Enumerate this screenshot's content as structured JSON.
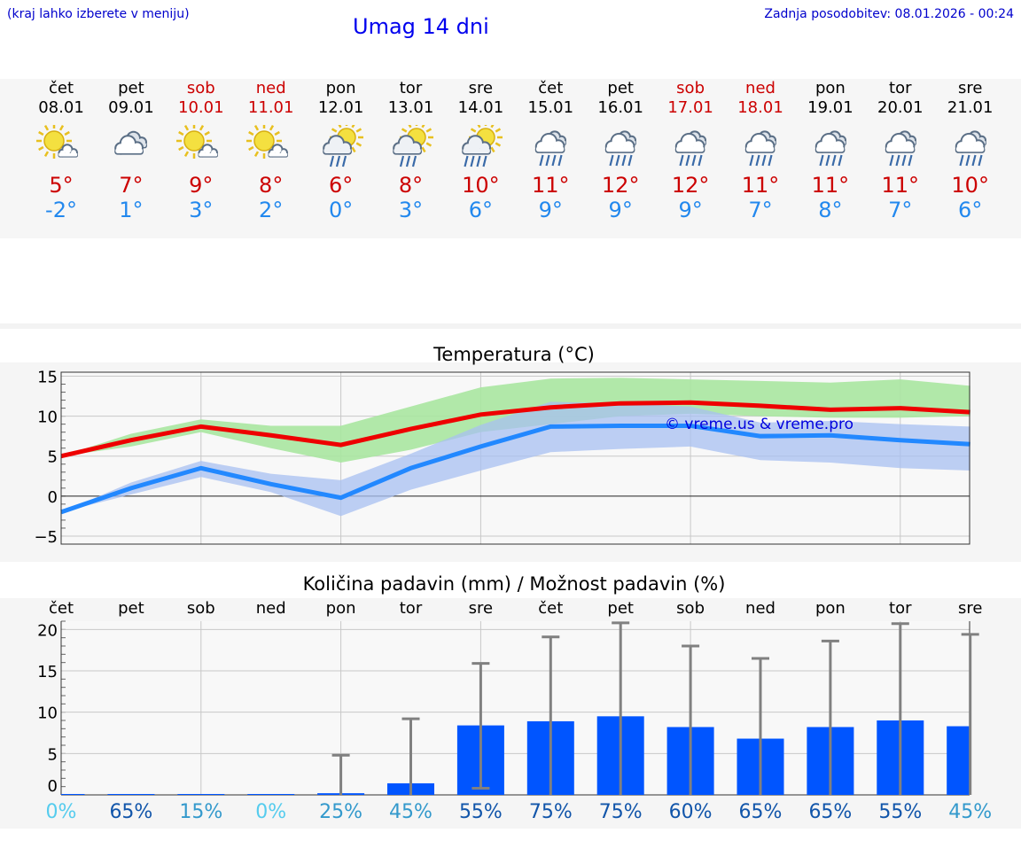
{
  "header": {
    "note": "(kraj lahko izberete v meniju)",
    "title": "Umag 14 dni",
    "updated": "Zadnja posodobitev: 08.01.2026 - 00:24"
  },
  "days": [
    {
      "name": "čet",
      "date": "08.01",
      "weekend": false,
      "icon": "sun-cloud-icon",
      "tmax": "5°",
      "tmin": "-2°"
    },
    {
      "name": "pet",
      "date": "09.01",
      "weekend": false,
      "icon": "cloudy-icon",
      "tmax": "7°",
      "tmin": "1°"
    },
    {
      "name": "sob",
      "date": "10.01",
      "weekend": true,
      "icon": "sun-cloud-icon",
      "tmax": "9°",
      "tmin": "3°"
    },
    {
      "name": "ned",
      "date": "11.01",
      "weekend": true,
      "icon": "sun-cloud-icon",
      "tmax": "8°",
      "tmin": "2°"
    },
    {
      "name": "pon",
      "date": "12.01",
      "weekend": false,
      "icon": "sun-cloud-rain-icon",
      "tmax": "6°",
      "tmin": "0°"
    },
    {
      "name": "tor",
      "date": "13.01",
      "weekend": false,
      "icon": "sun-cloud-rain-icon",
      "tmax": "8°",
      "tmin": "3°"
    },
    {
      "name": "sre",
      "date": "14.01",
      "weekend": false,
      "icon": "sun-cloud-heavy-rain-icon",
      "tmax": "10°",
      "tmin": "6°"
    },
    {
      "name": "čet",
      "date": "15.01",
      "weekend": false,
      "icon": "cloud-rain-icon",
      "tmax": "11°",
      "tmin": "9°"
    },
    {
      "name": "pet",
      "date": "16.01",
      "weekend": false,
      "icon": "cloud-rain-icon",
      "tmax": "12°",
      "tmin": "9°"
    },
    {
      "name": "sob",
      "date": "17.01",
      "weekend": true,
      "icon": "cloud-rain-icon",
      "tmax": "12°",
      "tmin": "9°"
    },
    {
      "name": "ned",
      "date": "18.01",
      "weekend": true,
      "icon": "cloud-rain-icon",
      "tmax": "11°",
      "tmin": "7°"
    },
    {
      "name": "pon",
      "date": "19.01",
      "weekend": false,
      "icon": "cloud-rain-icon",
      "tmax": "11°",
      "tmin": "8°"
    },
    {
      "name": "tor",
      "date": "20.01",
      "weekend": false,
      "icon": "cloud-rain-icon",
      "tmax": "11°",
      "tmin": "7°"
    },
    {
      "name": "sre",
      "date": "21.01",
      "weekend": false,
      "icon": "cloud-rain-icon",
      "tmax": "10°",
      "tmin": "6°"
    }
  ],
  "colors": {
    "max_line": "#ee0000",
    "min_line": "#2288ff",
    "max_band": "#a8e6a0",
    "min_band": "#a8c0f2",
    "overlap_band": "#80c8b0",
    "bar": "#0055ff",
    "weekend_text": "#cc0000",
    "title_blue": "#0000ee"
  },
  "chart_data": [
    {
      "type": "line",
      "title": "Temperatura (°C)",
      "watermark": "© vreme.us & vreme.pro",
      "ylim": [
        -6,
        15.5
      ],
      "yticks": [
        "15",
        "10",
        "5",
        "0",
        "−5"
      ],
      "ytick_values": [
        15,
        10,
        5,
        0,
        -5
      ],
      "x": [
        0,
        1,
        2,
        3,
        4,
        5,
        6,
        7,
        8,
        9,
        10,
        11,
        12,
        13
      ],
      "series": [
        {
          "name": "max",
          "values": [
            5,
            7,
            8.7,
            7.6,
            6.4,
            8.4,
            10.2,
            11.1,
            11.6,
            11.7,
            11.3,
            10.8,
            11.0,
            10.5
          ]
        },
        {
          "name": "min",
          "values": [
            -2,
            1,
            3.5,
            1.5,
            -0.2,
            3.5,
            6.2,
            8.7,
            8.8,
            8.8,
            7.5,
            7.6,
            7.0,
            6.5
          ]
        }
      ],
      "bands": [
        {
          "name": "max_range",
          "low": [
            5,
            6.2,
            8.0,
            6.0,
            4.2,
            5.8,
            8.0,
            9.0,
            10.0,
            10.3,
            10.0,
            9.8,
            9.8,
            10.0
          ],
          "high": [
            5,
            7.8,
            9.6,
            8.8,
            8.8,
            11.2,
            13.6,
            14.7,
            14.8,
            14.6,
            14.4,
            14.2,
            14.6,
            13.8
          ]
        },
        {
          "name": "min_range",
          "low": [
            -2,
            0.2,
            2.4,
            0.5,
            -2.5,
            0.8,
            3.2,
            5.5,
            5.9,
            6.2,
            4.5,
            4.2,
            3.5,
            3.2
          ],
          "high": [
            -2,
            1.7,
            4.4,
            2.8,
            2.0,
            5.3,
            8.9,
            11.8,
            11.6,
            11.2,
            9.2,
            9.4,
            9.0,
            8.7
          ]
        }
      ]
    },
    {
      "type": "bar",
      "title": "Količina padavin (mm) / Možnost padavin (%)",
      "ylim": [
        0,
        21
      ],
      "yticks": [
        "20",
        "15",
        "10",
        "5",
        "0"
      ],
      "ytick_values": [
        20,
        15,
        10,
        5,
        0
      ],
      "categories": [
        "čet",
        "pet",
        "sob",
        "ned",
        "pon",
        "tor",
        "sre",
        "čet",
        "pet",
        "sob",
        "ned",
        "pon",
        "tor",
        "sre"
      ],
      "values": [
        0,
        0.05,
        0.05,
        0.05,
        0.2,
        1.4,
        8.4,
        8.9,
        9.5,
        8.2,
        6.8,
        8.2,
        9.0,
        8.3
      ],
      "error_high": [
        0,
        0,
        0,
        0,
        4.8,
        9.2,
        15.9,
        19.1,
        20.8,
        18.0,
        16.5,
        18.6,
        20.7,
        19.4
      ],
      "error_low": [
        0,
        0,
        0,
        0,
        0,
        0,
        0.8,
        0,
        0,
        0,
        0,
        0,
        0,
        0
      ],
      "probability": [
        "0%",
        "65%",
        "15%",
        "0%",
        "25%",
        "45%",
        "55%",
        "75%",
        "75%",
        "60%",
        "65%",
        "65%",
        "55%",
        "45%"
      ],
      "probability_colors": [
        "#55ccee",
        "#1155aa",
        "#3399cc",
        "#55ccee",
        "#3399cc",
        "#3399cc",
        "#1155aa",
        "#1155aa",
        "#1155aa",
        "#1155aa",
        "#1155aa",
        "#1155aa",
        "#1155aa",
        "#3399cc"
      ]
    }
  ]
}
